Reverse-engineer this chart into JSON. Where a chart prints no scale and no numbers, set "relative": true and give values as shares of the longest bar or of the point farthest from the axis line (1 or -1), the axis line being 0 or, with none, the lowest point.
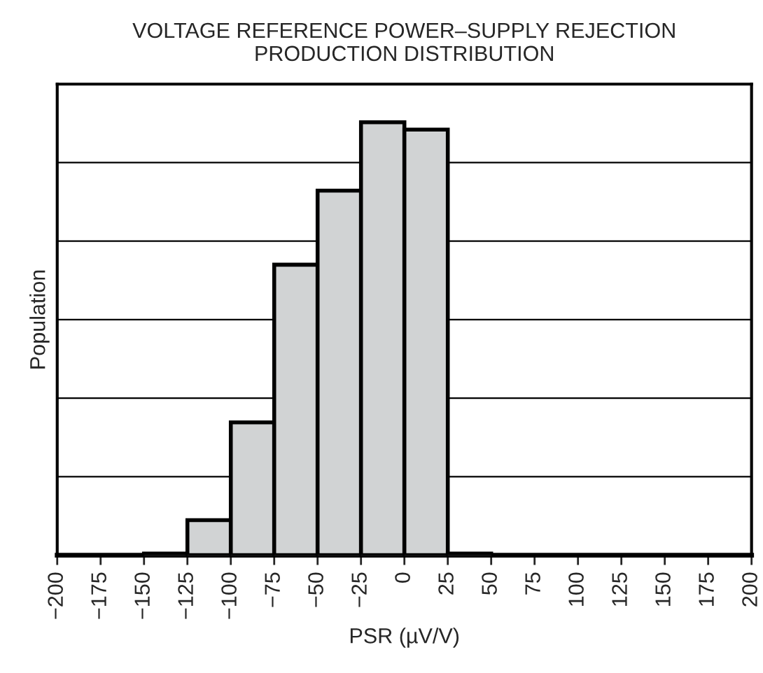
{
  "chart_data": {
    "type": "bar",
    "title": "VOLTAGE REFERENCE POWER–SUPPLY REJECTION\nPRODUCTION DISTRIBUTION",
    "xlabel": "PSR (µV/V)",
    "ylabel": "Population",
    "relative": true,
    "x": [
      -137.5,
      -112.5,
      -87.5,
      -62.5,
      -37.5,
      -12.5,
      12.5,
      37.5
    ],
    "values": [
      0.004,
      0.081,
      0.307,
      0.671,
      0.842,
      1,
      0.983,
      0.004
    ],
    "color": "#d1d3d4",
    "xlim": [
      -200,
      200
    ],
    "xticks": [
      {
        "value": -200,
        "label": "−200"
      },
      {
        "value": -175,
        "label": "−175"
      },
      {
        "value": -150,
        "label": "−150"
      },
      {
        "value": -125,
        "label": "−125"
      },
      {
        "value": -100,
        "label": "−100"
      },
      {
        "value": -75,
        "label": "−75"
      },
      {
        "value": -50,
        "label": "−50"
      },
      {
        "value": -25,
        "label": "−25"
      },
      {
        "value": 0,
        "label": "0"
      },
      {
        "value": 25,
        "label": "25"
      },
      {
        "value": 50,
        "label": "50"
      },
      {
        "value": 75,
        "label": "75"
      },
      {
        "value": 100,
        "label": "100"
      },
      {
        "value": 125,
        "label": "125"
      },
      {
        "value": 150,
        "label": "150"
      },
      {
        "value": 175,
        "label": "175"
      },
      {
        "value": 200,
        "label": "200"
      }
    ],
    "grid": "y",
    "tick_labels": "x",
    "legend": false
  }
}
